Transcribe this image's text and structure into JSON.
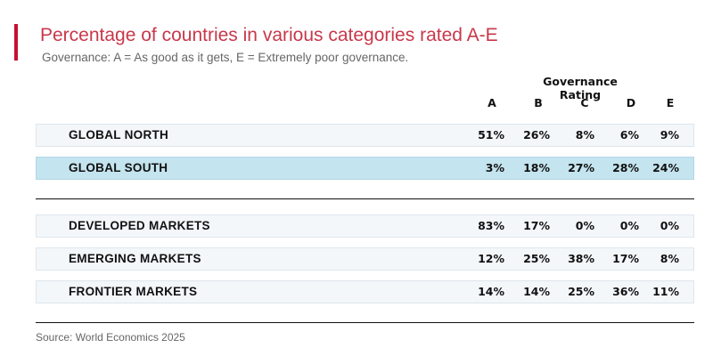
{
  "title": "Percentage of countries in various categories rated A-E",
  "subtitle": "Governance: A = As good as it gets, E = Extremely poor governance.",
  "column_group_header": "Governance Rating",
  "source": "Source: World Economics 2025",
  "colors": {
    "accent": "#c8102e",
    "title": "#c8384a",
    "row_bg": "#f3f7fa",
    "highlight_bg": "#c4e4ef"
  },
  "chart_data": {
    "type": "table",
    "title": "Percentage of countries in various categories rated A-E",
    "columns": [
      "A",
      "B",
      "C",
      "D",
      "E"
    ],
    "groups": [
      {
        "rows": [
          {
            "label": "GLOBAL NORTH",
            "highlight": false,
            "values": [
              "51%",
              "26%",
              "8%",
              "6%",
              "9%"
            ]
          },
          {
            "label": "GLOBAL SOUTH",
            "highlight": true,
            "values": [
              "3%",
              "18%",
              "27%",
              "28%",
              "24%"
            ]
          }
        ]
      },
      {
        "rows": [
          {
            "label": "DEVELOPED MARKETS",
            "highlight": false,
            "values": [
              "83%",
              "17%",
              "0%",
              "0%",
              "0%"
            ]
          },
          {
            "label": "EMERGING MARKETS",
            "highlight": false,
            "values": [
              "12%",
              "25%",
              "38%",
              "17%",
              "8%"
            ]
          },
          {
            "label": "FRONTIER MARKETS",
            "highlight": false,
            "values": [
              "14%",
              "14%",
              "25%",
              "36%",
              "11%"
            ]
          }
        ]
      }
    ]
  }
}
